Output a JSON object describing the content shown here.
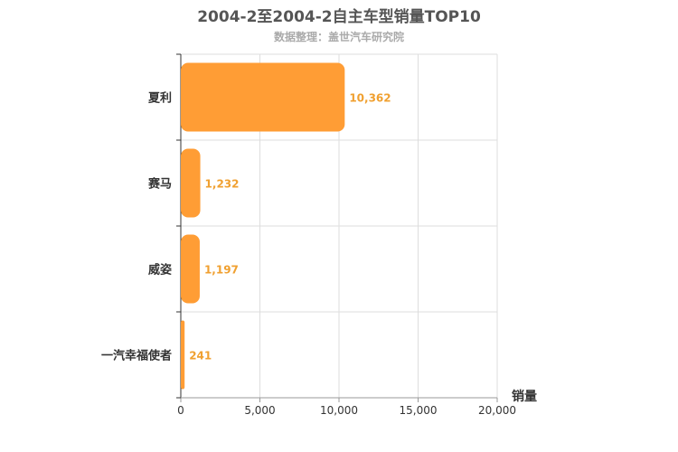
{
  "chart_data": {
    "type": "bar",
    "orientation": "horizontal",
    "title": "2004-2至2004-2自主车型销量TOP10",
    "subtitle": "数据整理：盖世汽车研究院",
    "categories": [
      "夏利",
      "赛马",
      "威姿",
      "一汽幸福使者"
    ],
    "values": [
      10362,
      1232,
      1197,
      241
    ],
    "value_labels": [
      "10,362",
      "1,232",
      "1,197",
      "241"
    ],
    "xlabel": "销量",
    "ylabel": "",
    "xlim": [
      0,
      20000
    ],
    "x_ticks": [
      0,
      5000,
      10000,
      15000,
      20000
    ],
    "x_tick_labels": [
      "0",
      "5,000",
      "10,000",
      "15,000",
      "20,000"
    ],
    "grid": true,
    "bar_color": "#ff9d35",
    "label_color": "#f0a030"
  }
}
